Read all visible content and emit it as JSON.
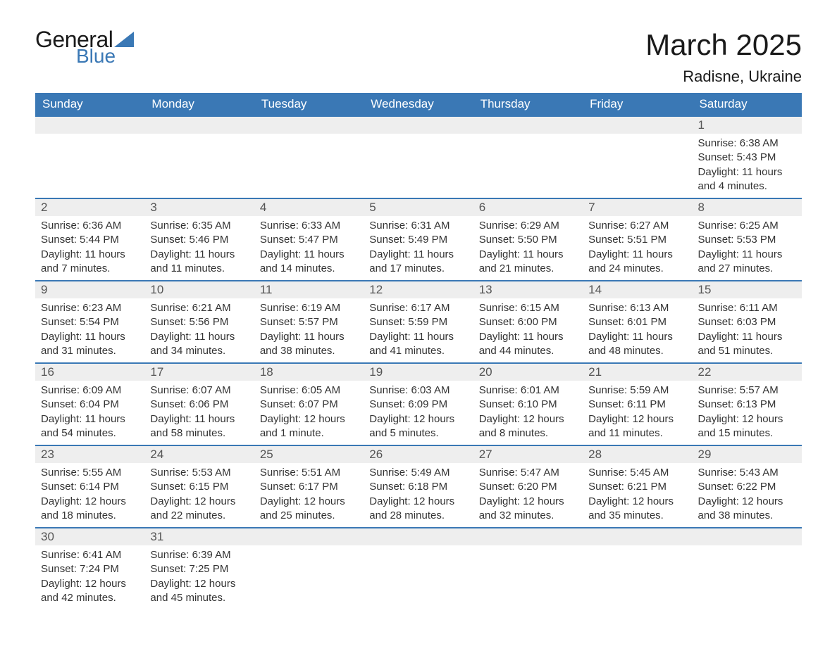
{
  "logo": {
    "word1": "General",
    "word2": "Blue",
    "triangle_color": "#3a78b5"
  },
  "title": "March 2025",
  "location": "Radisne, Ukraine",
  "colors": {
    "header_bg": "#3a78b5",
    "header_fg": "#ffffff",
    "daynum_bg": "#eeeeee",
    "row_border": "#3a78b5"
  },
  "typography": {
    "title_fontsize": 42,
    "location_fontsize": 22,
    "header_fontsize": 17,
    "body_fontsize": 15
  },
  "day_headers": [
    "Sunday",
    "Monday",
    "Tuesday",
    "Wednesday",
    "Thursday",
    "Friday",
    "Saturday"
  ],
  "weeks": [
    [
      null,
      null,
      null,
      null,
      null,
      null,
      {
        "n": "1",
        "sr": "Sunrise: 6:38 AM",
        "ss": "Sunset: 5:43 PM",
        "d1": "Daylight: 11 hours",
        "d2": "and 4 minutes."
      }
    ],
    [
      {
        "n": "2",
        "sr": "Sunrise: 6:36 AM",
        "ss": "Sunset: 5:44 PM",
        "d1": "Daylight: 11 hours",
        "d2": "and 7 minutes."
      },
      {
        "n": "3",
        "sr": "Sunrise: 6:35 AM",
        "ss": "Sunset: 5:46 PM",
        "d1": "Daylight: 11 hours",
        "d2": "and 11 minutes."
      },
      {
        "n": "4",
        "sr": "Sunrise: 6:33 AM",
        "ss": "Sunset: 5:47 PM",
        "d1": "Daylight: 11 hours",
        "d2": "and 14 minutes."
      },
      {
        "n": "5",
        "sr": "Sunrise: 6:31 AM",
        "ss": "Sunset: 5:49 PM",
        "d1": "Daylight: 11 hours",
        "d2": "and 17 minutes."
      },
      {
        "n": "6",
        "sr": "Sunrise: 6:29 AM",
        "ss": "Sunset: 5:50 PM",
        "d1": "Daylight: 11 hours",
        "d2": "and 21 minutes."
      },
      {
        "n": "7",
        "sr": "Sunrise: 6:27 AM",
        "ss": "Sunset: 5:51 PM",
        "d1": "Daylight: 11 hours",
        "d2": "and 24 minutes."
      },
      {
        "n": "8",
        "sr": "Sunrise: 6:25 AM",
        "ss": "Sunset: 5:53 PM",
        "d1": "Daylight: 11 hours",
        "d2": "and 27 minutes."
      }
    ],
    [
      {
        "n": "9",
        "sr": "Sunrise: 6:23 AM",
        "ss": "Sunset: 5:54 PM",
        "d1": "Daylight: 11 hours",
        "d2": "and 31 minutes."
      },
      {
        "n": "10",
        "sr": "Sunrise: 6:21 AM",
        "ss": "Sunset: 5:56 PM",
        "d1": "Daylight: 11 hours",
        "d2": "and 34 minutes."
      },
      {
        "n": "11",
        "sr": "Sunrise: 6:19 AM",
        "ss": "Sunset: 5:57 PM",
        "d1": "Daylight: 11 hours",
        "d2": "and 38 minutes."
      },
      {
        "n": "12",
        "sr": "Sunrise: 6:17 AM",
        "ss": "Sunset: 5:59 PM",
        "d1": "Daylight: 11 hours",
        "d2": "and 41 minutes."
      },
      {
        "n": "13",
        "sr": "Sunrise: 6:15 AM",
        "ss": "Sunset: 6:00 PM",
        "d1": "Daylight: 11 hours",
        "d2": "and 44 minutes."
      },
      {
        "n": "14",
        "sr": "Sunrise: 6:13 AM",
        "ss": "Sunset: 6:01 PM",
        "d1": "Daylight: 11 hours",
        "d2": "and 48 minutes."
      },
      {
        "n": "15",
        "sr": "Sunrise: 6:11 AM",
        "ss": "Sunset: 6:03 PM",
        "d1": "Daylight: 11 hours",
        "d2": "and 51 minutes."
      }
    ],
    [
      {
        "n": "16",
        "sr": "Sunrise: 6:09 AM",
        "ss": "Sunset: 6:04 PM",
        "d1": "Daylight: 11 hours",
        "d2": "and 54 minutes."
      },
      {
        "n": "17",
        "sr": "Sunrise: 6:07 AM",
        "ss": "Sunset: 6:06 PM",
        "d1": "Daylight: 11 hours",
        "d2": "and 58 minutes."
      },
      {
        "n": "18",
        "sr": "Sunrise: 6:05 AM",
        "ss": "Sunset: 6:07 PM",
        "d1": "Daylight: 12 hours",
        "d2": "and 1 minute."
      },
      {
        "n": "19",
        "sr": "Sunrise: 6:03 AM",
        "ss": "Sunset: 6:09 PM",
        "d1": "Daylight: 12 hours",
        "d2": "and 5 minutes."
      },
      {
        "n": "20",
        "sr": "Sunrise: 6:01 AM",
        "ss": "Sunset: 6:10 PM",
        "d1": "Daylight: 12 hours",
        "d2": "and 8 minutes."
      },
      {
        "n": "21",
        "sr": "Sunrise: 5:59 AM",
        "ss": "Sunset: 6:11 PM",
        "d1": "Daylight: 12 hours",
        "d2": "and 11 minutes."
      },
      {
        "n": "22",
        "sr": "Sunrise: 5:57 AM",
        "ss": "Sunset: 6:13 PM",
        "d1": "Daylight: 12 hours",
        "d2": "and 15 minutes."
      }
    ],
    [
      {
        "n": "23",
        "sr": "Sunrise: 5:55 AM",
        "ss": "Sunset: 6:14 PM",
        "d1": "Daylight: 12 hours",
        "d2": "and 18 minutes."
      },
      {
        "n": "24",
        "sr": "Sunrise: 5:53 AM",
        "ss": "Sunset: 6:15 PM",
        "d1": "Daylight: 12 hours",
        "d2": "and 22 minutes."
      },
      {
        "n": "25",
        "sr": "Sunrise: 5:51 AM",
        "ss": "Sunset: 6:17 PM",
        "d1": "Daylight: 12 hours",
        "d2": "and 25 minutes."
      },
      {
        "n": "26",
        "sr": "Sunrise: 5:49 AM",
        "ss": "Sunset: 6:18 PM",
        "d1": "Daylight: 12 hours",
        "d2": "and 28 minutes."
      },
      {
        "n": "27",
        "sr": "Sunrise: 5:47 AM",
        "ss": "Sunset: 6:20 PM",
        "d1": "Daylight: 12 hours",
        "d2": "and 32 minutes."
      },
      {
        "n": "28",
        "sr": "Sunrise: 5:45 AM",
        "ss": "Sunset: 6:21 PM",
        "d1": "Daylight: 12 hours",
        "d2": "and 35 minutes."
      },
      {
        "n": "29",
        "sr": "Sunrise: 5:43 AM",
        "ss": "Sunset: 6:22 PM",
        "d1": "Daylight: 12 hours",
        "d2": "and 38 minutes."
      }
    ],
    [
      {
        "n": "30",
        "sr": "Sunrise: 6:41 AM",
        "ss": "Sunset: 7:24 PM",
        "d1": "Daylight: 12 hours",
        "d2": "and 42 minutes."
      },
      {
        "n": "31",
        "sr": "Sunrise: 6:39 AM",
        "ss": "Sunset: 7:25 PM",
        "d1": "Daylight: 12 hours",
        "d2": "and 45 minutes."
      },
      null,
      null,
      null,
      null,
      null
    ]
  ]
}
